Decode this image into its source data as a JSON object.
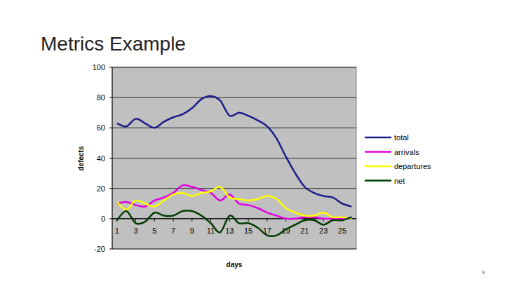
{
  "chart_data": {
    "type": "line",
    "title": "Metrics Example",
    "x_label": "days",
    "y_label": "defects",
    "x": [
      1,
      2,
      3,
      4,
      5,
      6,
      7,
      8,
      9,
      10,
      11,
      12,
      13,
      14,
      15,
      16,
      17,
      18,
      19,
      20,
      21,
      22,
      23,
      24,
      25,
      26
    ],
    "series": [
      {
        "name": "total",
        "color": "#1c1c8a",
        "values": [
          63,
          61,
          66,
          63,
          60,
          64,
          67,
          69,
          73,
          79,
          81,
          78,
          68,
          70,
          68,
          65,
          61,
          53,
          41,
          30,
          21,
          17,
          15,
          14,
          10,
          8
        ]
      },
      {
        "name": "arrivals",
        "color": "#e000e0",
        "values": [
          10,
          11,
          9,
          8,
          12,
          14,
          17,
          22,
          21,
          19,
          17,
          12,
          16,
          10,
          9,
          7,
          4,
          2,
          0,
          0,
          1,
          1,
          0,
          0,
          0,
          1
        ]
      },
      {
        "name": "departures",
        "color": "#ffff00",
        "values": [
          11,
          6,
          12,
          10,
          8,
          12,
          16,
          17,
          15,
          17,
          18,
          21,
          14,
          13,
          12,
          13,
          15,
          13,
          7,
          4,
          2,
          2,
          4,
          1,
          1,
          0
        ]
      },
      {
        "name": "net",
        "color": "#003c00",
        "values": [
          -1,
          5,
          -3,
          -2,
          4,
          2,
          2,
          5,
          5,
          2,
          -3,
          -9,
          2,
          -3,
          -3,
          -6,
          -11,
          -11,
          -7,
          -4,
          -1,
          -1,
          -4,
          -1,
          -1,
          1
        ]
      }
    ],
    "xlim": [
      0.5,
      26.5
    ],
    "xticks": [
      1,
      3,
      5,
      7,
      9,
      11,
      13,
      15,
      17,
      19,
      21,
      23,
      25
    ],
    "ylim": [
      -20,
      100
    ],
    "yticks": [
      -20,
      0,
      20,
      40,
      60,
      80,
      100
    ],
    "grid": true,
    "legend": "right",
    "line_style": "smooth"
  },
  "slide_number": "9"
}
